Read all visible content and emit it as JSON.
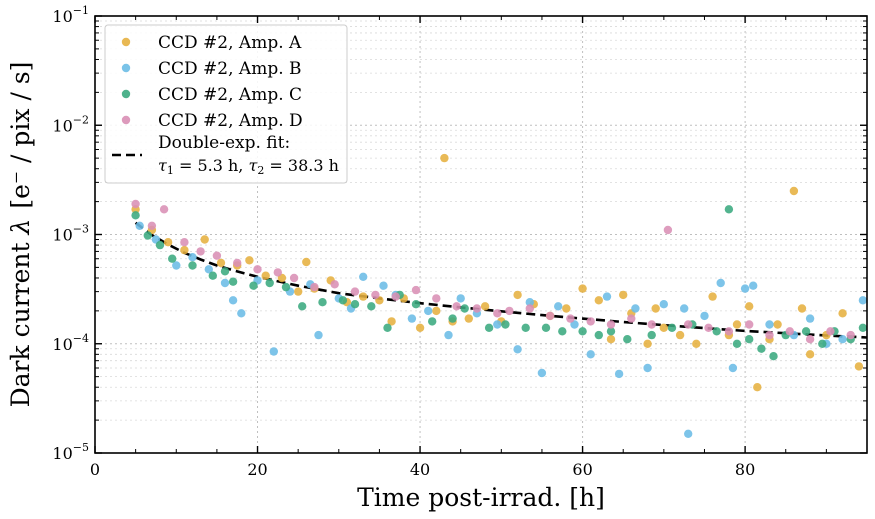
{
  "chart_data": {
    "type": "scatter",
    "title": "",
    "xlabel": "Time post-irrad. [h]",
    "ylabel_prefix": "Dark current ",
    "ylabel_symbol": "λ",
    "ylabel_unit": "[e⁻ / pix / s]",
    "x_scale": "linear",
    "y_scale": "log",
    "xlim": [
      0,
      95
    ],
    "ylim": [
      1e-05,
      0.1
    ],
    "x_ticks": [
      0,
      20,
      40,
      60,
      80
    ],
    "x_tick_labels": [
      "0",
      "20",
      "40",
      "60",
      "80"
    ],
    "y_ticks": [
      1e-05,
      0.0001,
      0.001,
      0.01,
      0.1
    ],
    "y_tick_bases": [
      "10",
      "10",
      "10",
      "10",
      "10"
    ],
    "y_tick_exponents": [
      "−5",
      "−4",
      "−3",
      "−2",
      "−1"
    ],
    "grid": true,
    "legend_placement": "top-left",
    "series": [
      {
        "name": "CCD #2, Amp. A",
        "color": "#E6B040",
        "x": [
          5,
          7,
          9,
          11,
          13.5,
          15.5,
          17.5,
          19,
          21,
          23,
          25,
          26,
          27,
          29,
          31,
          33,
          35,
          36.5,
          38,
          40,
          42,
          43,
          44,
          46,
          48,
          50,
          52,
          54,
          56,
          58,
          60,
          62,
          63.5,
          65,
          66,
          68,
          69,
          70,
          72,
          74,
          76,
          78,
          79,
          80.5,
          81.5,
          83,
          84,
          86,
          87,
          88,
          90,
          92,
          94
        ],
        "y": [
          0.0017,
          0.0011,
          0.00085,
          0.00072,
          0.0009,
          0.00055,
          0.00052,
          0.00058,
          0.00042,
          0.0004,
          0.0003,
          0.00056,
          0.00032,
          0.00038,
          0.00024,
          0.00027,
          0.00025,
          0.00016,
          0.00026,
          0.00014,
          0.0002,
          0.005,
          0.00016,
          0.00017,
          0.00022,
          0.00016,
          0.00028,
          0.00023,
          0.00018,
          0.00021,
          0.00032,
          0.00025,
          0.00011,
          0.00028,
          0.00019,
          0.0001,
          0.00021,
          0.00014,
          0.00012,
          0.0001,
          0.00027,
          0.00012,
          0.00015,
          0.00022,
          4e-05,
          0.00011,
          0.00015,
          0.0025,
          0.00021,
          8e-05,
          0.00012,
          0.00019,
          6.2e-05
        ]
      },
      {
        "name": "CCD #2, Amp. B",
        "color": "#6BBCE6",
        "x": [
          5.5,
          7.5,
          10,
          12,
          14,
          16,
          17,
          18,
          20,
          22,
          24,
          26.5,
          27.5,
          30,
          31.5,
          33,
          35.5,
          37,
          39,
          41,
          43.5,
          45,
          47,
          49.5,
          52,
          53.5,
          55,
          57,
          59,
          61,
          63,
          64.5,
          66.5,
          68,
          70,
          72.5,
          73,
          75,
          77,
          78.5,
          80,
          81,
          83,
          86,
          88,
          90,
          92,
          94.5
        ],
        "y": [
          0.0012,
          0.0009,
          0.00052,
          0.00062,
          0.00048,
          0.00036,
          0.00025,
          0.00019,
          0.00038,
          8.5e-05,
          0.0003,
          0.00035,
          0.00012,
          0.00026,
          0.00021,
          0.00041,
          0.00034,
          0.00028,
          0.00017,
          0.0002,
          0.00012,
          0.00026,
          0.00019,
          0.00015,
          8.9e-05,
          0.00024,
          5.4e-05,
          0.00022,
          0.00015,
          8e-05,
          0.00027,
          5.3e-05,
          0.00021,
          6e-05,
          0.00023,
          0.00021,
          1.5e-05,
          0.00018,
          0.00036,
          6e-05,
          0.00032,
          0.00034,
          0.00015,
          0.00012,
          0.00017,
          0.0001,
          0.00011,
          0.00025
        ]
      },
      {
        "name": "CCD #2, Amp. C",
        "color": "#3BAA80",
        "x": [
          5,
          6.5,
          8,
          9.5,
          12,
          14.5,
          16,
          17,
          19.5,
          21.5,
          23.5,
          25.5,
          28,
          30.5,
          32,
          34,
          36,
          37.5,
          39.5,
          41.5,
          44,
          45.5,
          48.5,
          50.5,
          53,
          55.5,
          57.5,
          60,
          62,
          63.5,
          65.5,
          68.5,
          71,
          73.5,
          76.5,
          78,
          79,
          80.5,
          82,
          83.5,
          85,
          87.5,
          89.5,
          91,
          93,
          94.5
        ],
        "y": [
          0.0015,
          0.00098,
          0.0008,
          0.0006,
          0.00052,
          0.00042,
          0.00046,
          0.00037,
          0.00034,
          0.00036,
          0.00033,
          0.00022,
          0.00024,
          0.00025,
          0.00023,
          0.00022,
          0.00014,
          0.00028,
          0.00023,
          0.00016,
          0.00017,
          0.00021,
          0.00014,
          0.00015,
          0.00014,
          0.00014,
          0.00013,
          0.00013,
          0.00012,
          0.00013,
          0.00011,
          0.00012,
          0.00014,
          0.00015,
          0.00013,
          0.0017,
          0.0001,
          0.00011,
          9e-05,
          7.7e-05,
          0.00012,
          0.00013,
          0.0001,
          0.00013,
          0.00011,
          0.00014
        ]
      },
      {
        "name": "CCD #2, Amp. D",
        "color": "#D98FB5",
        "x": [
          5,
          7,
          8.5,
          11,
          13,
          15,
          17.5,
          20,
          22.5,
          24.5,
          27,
          29.5,
          32,
          34.5,
          37,
          39.5,
          42,
          44.5,
          47,
          49.5,
          51,
          53.5,
          56,
          58.5,
          61,
          63.5,
          66,
          68.5,
          70.5,
          73,
          75.5,
          78,
          80.5,
          83,
          85.5,
          88,
          90.5,
          93
        ],
        "y": [
          0.0019,
          0.0012,
          0.0017,
          0.00085,
          0.0007,
          0.00064,
          0.00055,
          0.00048,
          0.00045,
          0.0004,
          0.00033,
          0.00035,
          0.0003,
          0.00028,
          0.00027,
          0.00031,
          0.00026,
          0.00022,
          0.00021,
          0.00019,
          0.0002,
          0.00021,
          0.00018,
          0.00017,
          0.00016,
          0.00015,
          0.00017,
          0.00015,
          0.0011,
          0.00015,
          0.00014,
          0.00013,
          0.00015,
          0.00012,
          0.00013,
          0.00011,
          0.00013,
          0.00012
        ]
      }
    ],
    "fit": {
      "name_line1": "Double-exp. fit:",
      "tau1_symbol": "τ",
      "tau1_index": "1",
      "tau1_value": " = 5.3 h, ",
      "tau2_symbol": "τ",
      "tau2_index": "2",
      "tau2_value": " = 38.3 h",
      "style": "dashed",
      "color": "#000000",
      "x": [
        5,
        7,
        9,
        11,
        13,
        15,
        17,
        20,
        25,
        30,
        35,
        40,
        45,
        50,
        55,
        60,
        65,
        70,
        75,
        80,
        85,
        90,
        95
      ],
      "y": [
        0.00128,
        0.00099,
        0.00081,
        0.00068,
        0.00059,
        0.00052,
        0.00047,
        0.00041,
        0.00034,
        0.00029,
        0.00026,
        0.000235,
        0.000215,
        0.000198,
        0.000183,
        0.00017,
        0.000158,
        0.000148,
        0.000139,
        0.000131,
        0.000125,
        0.000119,
        0.000114
      ]
    }
  }
}
